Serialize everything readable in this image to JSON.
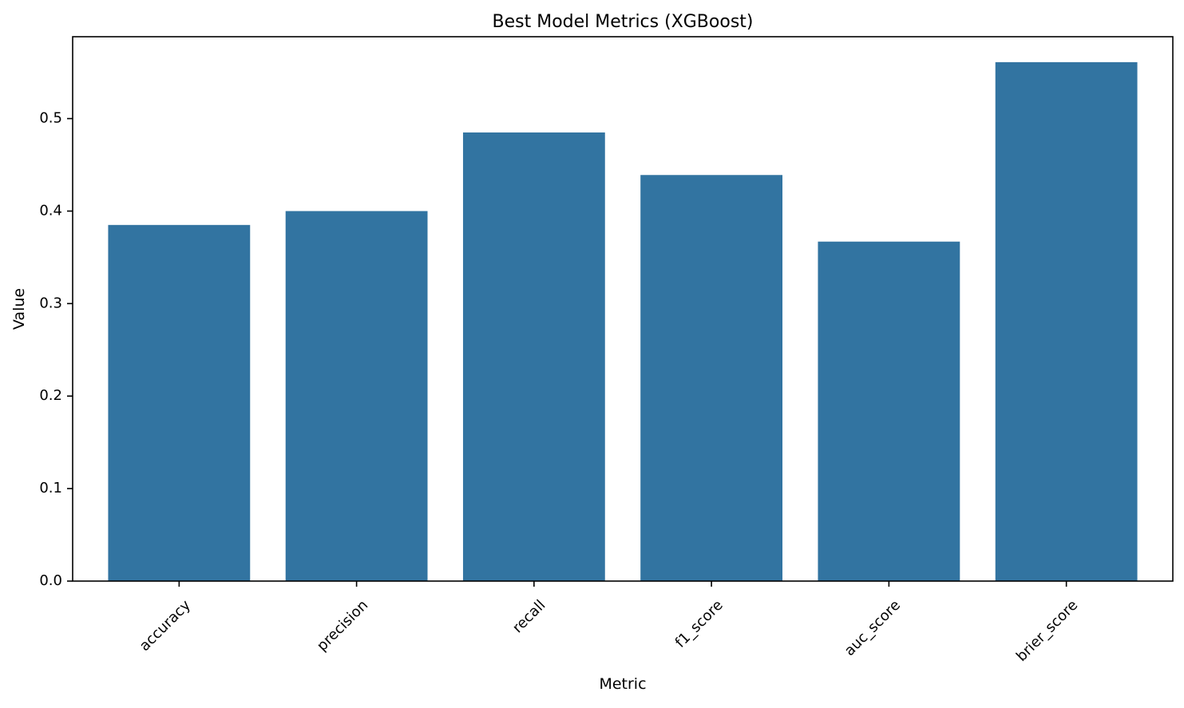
{
  "chart_data": {
    "type": "bar",
    "title": "Best Model Metrics (XGBoost)",
    "xlabel": "Metric",
    "ylabel": "Value",
    "categories": [
      "accuracy",
      "precision",
      "recall",
      "f1_score",
      "auc_score",
      "brier_score"
    ],
    "values": [
      0.385,
      0.4,
      0.485,
      0.439,
      0.367,
      0.561
    ],
    "ylim": [
      0,
      0.5885
    ],
    "yticks": [
      0.0,
      0.1,
      0.2,
      0.3,
      0.4,
      0.5
    ],
    "ytick_labels": [
      "0.0",
      "0.1",
      "0.2",
      "0.3",
      "0.4",
      "0.5"
    ],
    "xtick_rotation_deg": 45,
    "bar_color": "#3274a1",
    "grid": false,
    "legend": "none"
  }
}
